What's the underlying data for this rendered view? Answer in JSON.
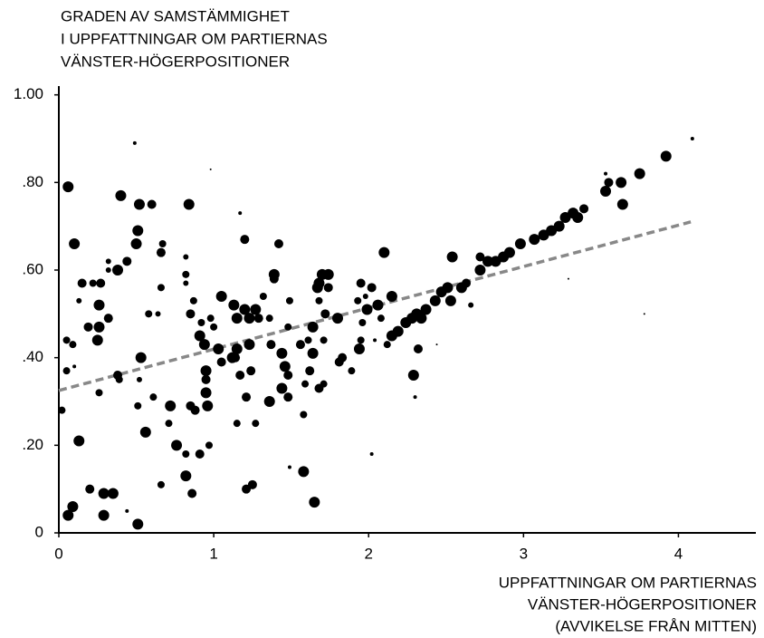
{
  "chart_data": {
    "type": "scatter",
    "y_label": [
      "GRADEN AV SAMSTÄMMIGHET",
      "I UPPFATTNINGAR OM PARTIERNAS",
      "VÄNSTER-HÖGERPOSITIONER"
    ],
    "x_label": [
      "UPPFATTNINGAR OM PARTIERNAS",
      "VÄNSTER-HÖGERPOSITIONER",
      "(AVVIKELSE FRÅN MITTEN)"
    ],
    "color": "#000000",
    "xlim": [
      0,
      4.5
    ],
    "xticks": [
      0,
      1,
      2,
      3,
      4
    ],
    "ylim": [
      0,
      1.02
    ],
    "yticks": [
      {
        "value": 0,
        "label": "0"
      },
      {
        "value": 0.2,
        "label": ".20"
      },
      {
        "value": 0.4,
        "label": ".40"
      },
      {
        "value": 0.6,
        "label": ".60"
      },
      {
        "value": 0.8,
        "label": ".80"
      },
      {
        "value": 1.0,
        "label": "1.00"
      }
    ],
    "trend": {
      "x": [
        0,
        4.08
      ],
      "y": [
        0.325,
        0.71
      ],
      "color": "#888888"
    },
    "x": [
      0.06,
      0.1,
      0.4,
      0.52,
      0.6,
      0.51,
      0.5,
      0.67,
      0.66,
      0.82,
      0.84,
      0.98,
      0.49,
      0.38,
      0.44,
      0.32,
      0.32,
      0.27,
      0.15,
      0.22,
      0.13,
      0.26,
      0.32,
      0.26,
      0.19,
      0.25,
      0.05,
      0.09,
      0.05,
      0.1,
      0.02,
      0.26,
      0.38,
      0.39,
      0.53,
      0.58,
      0.64,
      0.66,
      0.82,
      0.82,
      0.87,
      0.85,
      0.91,
      0.94,
      0.92,
      0.98,
      1.0,
      0.95,
      0.95,
      0.95,
      0.96,
      0.88,
      0.85,
      0.72,
      0.71,
      0.61,
      0.76,
      0.82,
      0.91,
      0.97,
      0.82,
      0.86,
      0.66,
      0.56,
      0.52,
      0.51,
      0.13,
      0.2,
      0.29,
      0.35,
      0.29,
      0.51,
      0.09,
      0.06,
      0.44,
      1.05,
      1.13,
      1.2,
      1.15,
      1.23,
      1.27,
      1.29,
      1.36,
      1.03,
      1.12,
      1.15,
      1.23,
      1.14,
      1.05,
      1.17,
      1.24,
      1.21,
      1.15,
      1.27,
      1.36,
      1.46,
      1.48,
      1.44,
      1.37,
      1.48,
      1.39,
      1.39,
      1.42,
      1.2,
      1.17,
      1.32,
      1.49,
      1.56,
      1.61,
      1.64,
      1.68,
      1.7,
      1.68,
      1.74,
      1.67,
      1.74,
      1.8,
      1.72,
      1.71,
      1.64,
      1.62,
      1.59,
      1.68,
      1.71,
      1.58,
      1.48,
      1.44,
      1.58,
      1.65,
      1.21,
      1.25,
      1.49,
      1.81,
      1.83,
      1.89,
      1.94,
      1.95,
      1.96,
      1.99,
      1.93,
      1.95,
      1.98,
      2.02,
      2.06,
      2.08,
      2.04,
      2.02,
      2.1,
      2.15,
      2.15,
      2.12,
      2.19,
      2.24,
      2.28,
      2.31,
      2.34,
      2.37,
      2.32,
      2.29,
      2.3,
      2.43,
      2.47,
      2.51,
      2.54,
      2.53,
      2.66,
      2.72,
      2.72,
      2.77,
      2.82,
      2.87,
      2.91,
      2.98,
      3.07,
      3.13,
      3.18,
      3.23,
      3.27,
      3.32,
      3.35,
      3.39,
      3.29,
      3.53,
      3.55,
      3.63,
      3.64,
      3.75,
      3.92,
      4.09,
      3.53,
      3.78,
      2.44,
      2.6,
      2.63
    ],
    "y": [
      0.79,
      0.66,
      0.77,
      0.75,
      0.75,
      0.69,
      0.66,
      0.66,
      0.64,
      0.63,
      0.75,
      0.83,
      0.89,
      0.6,
      0.62,
      0.6,
      0.62,
      0.57,
      0.57,
      0.57,
      0.53,
      0.52,
      0.49,
      0.47,
      0.47,
      0.44,
      0.44,
      0.43,
      0.37,
      0.38,
      0.28,
      0.32,
      0.36,
      0.35,
      0.4,
      0.5,
      0.5,
      0.56,
      0.59,
      0.57,
      0.53,
      0.5,
      0.45,
      0.43,
      0.48,
      0.49,
      0.47,
      0.37,
      0.35,
      0.32,
      0.29,
      0.28,
      0.29,
      0.29,
      0.25,
      0.31,
      0.2,
      0.18,
      0.18,
      0.2,
      0.13,
      0.09,
      0.11,
      0.23,
      0.35,
      0.29,
      0.21,
      0.1,
      0.09,
      0.09,
      0.04,
      0.02,
      0.06,
      0.04,
      0.05,
      0.54,
      0.52,
      0.51,
      0.49,
      0.49,
      0.51,
      0.49,
      0.49,
      0.42,
      0.4,
      0.42,
      0.43,
      0.4,
      0.39,
      0.36,
      0.37,
      0.31,
      0.25,
      0.25,
      0.3,
      0.38,
      0.36,
      0.41,
      0.43,
      0.47,
      0.59,
      0.58,
      0.66,
      0.67,
      0.73,
      0.54,
      0.53,
      0.43,
      0.44,
      0.47,
      0.53,
      0.59,
      0.57,
      0.59,
      0.56,
      0.56,
      0.49,
      0.5,
      0.44,
      0.41,
      0.37,
      0.34,
      0.33,
      0.34,
      0.27,
      0.31,
      0.33,
      0.14,
      0.07,
      0.1,
      0.11,
      0.15,
      0.39,
      0.4,
      0.37,
      0.42,
      0.44,
      0.48,
      0.51,
      0.53,
      0.57,
      0.54,
      0.56,
      0.52,
      0.49,
      0.44,
      0.18,
      0.64,
      0.54,
      0.45,
      0.43,
      0.46,
      0.48,
      0.49,
      0.5,
      0.49,
      0.51,
      0.42,
      0.36,
      0.31,
      0.53,
      0.55,
      0.56,
      0.63,
      0.53,
      0.52,
      0.63,
      0.6,
      0.62,
      0.62,
      0.63,
      0.64,
      0.66,
      0.67,
      0.68,
      0.69,
      0.7,
      0.72,
      0.73,
      0.72,
      0.74,
      0.58,
      0.78,
      0.8,
      0.8,
      0.75,
      0.82,
      0.86,
      0.9,
      0.82,
      0.5,
      0.43,
      0.56,
      0.57
    ],
    "sizes": [
      3,
      3,
      3,
      3,
      2.5,
      3,
      3,
      2,
      2.5,
      1.5,
      3,
      0.5,
      1,
      3,
      2.5,
      1.5,
      1.5,
      2.5,
      2.5,
      2,
      1.5,
      3,
      2.5,
      3,
      2.5,
      3,
      2,
      2,
      2,
      1,
      2,
      2,
      2.5,
      2,
      3,
      2,
      1.5,
      2,
      2,
      1.5,
      2,
      2.5,
      3,
      3,
      2,
      2,
      2,
      3,
      2.5,
      3,
      3,
      2.5,
      2.5,
      3,
      2,
      2,
      3,
      2,
      2.5,
      2,
      3,
      2.5,
      2,
      3,
      1.5,
      2,
      3,
      2.5,
      3,
      3,
      3,
      3,
      3,
      3,
      1,
      3,
      3,
      3,
      3,
      3,
      3,
      2.5,
      2,
      3,
      3,
      3,
      3,
      2.5,
      2.5,
      2.5,
      2.5,
      2.5,
      2,
      2,
      3,
      3,
      2.5,
      3,
      2.5,
      2,
      3,
      2.5,
      2.5,
      2.5,
      1,
      2,
      2,
      2.5,
      2,
      3,
      2,
      3,
      3,
      3,
      3,
      2.5,
      3,
      2.5,
      2,
      3,
      2.5,
      2,
      2.5,
      2,
      2,
      2.5,
      3,
      3,
      3,
      2.5,
      2.5,
      1,
      2.5,
      2.5,
      2,
      3,
      2,
      2,
      3,
      2,
      2.5,
      1.5,
      2.5,
      3,
      2,
      1,
      1,
      3,
      3,
      3,
      2,
      3,
      3,
      3,
      3,
      3,
      3,
      2.5,
      3,
      1,
      3,
      3,
      3,
      3,
      3,
      1.5,
      2.5,
      3,
      3,
      3,
      3,
      3,
      3,
      3,
      3,
      3,
      3,
      3,
      3,
      3,
      2.5,
      0.5,
      3,
      2.5,
      3,
      3,
      3,
      3,
      1,
      1,
      0.5,
      0.5,
      3,
      2.5
    ]
  }
}
